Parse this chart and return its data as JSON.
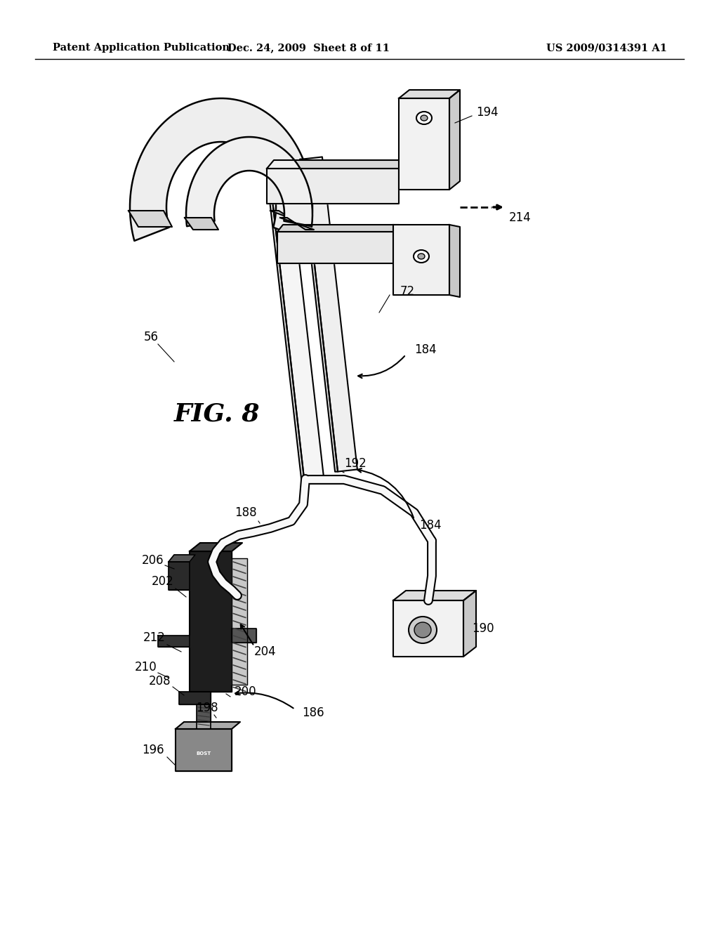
{
  "header_left": "Patent Application Publication",
  "header_center": "Dec. 24, 2009  Sheet 8 of 11",
  "header_right": "US 2009/0314391 A1",
  "fig_label": "FIG. 8",
  "background_color": "#ffffff",
  "line_color": "#000000",
  "header_fontsize": 10.5,
  "fig_label_fontsize": 26,
  "gray_light": "#e8e8e8",
  "gray_mid": "#c0c0c0",
  "gray_dark": "#888888",
  "gray_darker": "#555555",
  "gray_black": "#2a2a2a",
  "note_196": "BOST"
}
